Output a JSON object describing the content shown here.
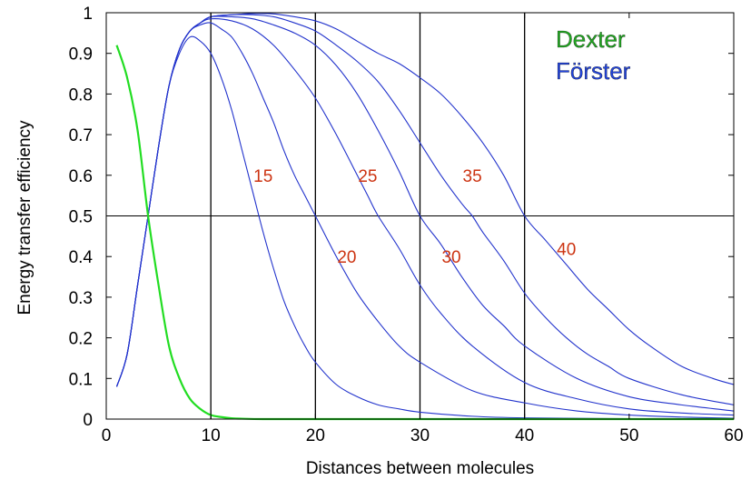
{
  "chart_data": {
    "type": "line",
    "title": "",
    "xlabel": "Distances between molecules",
    "ylabel": "Energy transfer efficiency",
    "xlim": [
      0,
      60
    ],
    "ylim": [
      0,
      1
    ],
    "xticks": [
      0,
      10,
      20,
      30,
      40,
      50,
      60
    ],
    "yticks": [
      0,
      0.1,
      0.2,
      0.3,
      0.4,
      0.5,
      0.6,
      0.7,
      0.8,
      0.9,
      1
    ],
    "ytick_labels": [
      "0",
      "0.1",
      "0.2",
      "0.3",
      "0.4",
      "0.5",
      "0.6",
      "0.7",
      "0.8",
      "0.9",
      "1"
    ],
    "reference_lines": {
      "y": [
        0.5
      ],
      "x": [
        10,
        20,
        30,
        40
      ]
    },
    "grid": false,
    "legend": {
      "position": "top-right",
      "entries": [
        {
          "label": "Dexter",
          "color": "#22aa22"
        },
        {
          "label": "Förster",
          "color": "#2244dd"
        }
      ]
    },
    "colors": {
      "dexter": "#22dd22",
      "forster": "#2233cc",
      "curve_labels": "#cc3311",
      "frame": "#000000"
    },
    "series": [
      {
        "group": "Dexter",
        "x": [
          1,
          2,
          3,
          4,
          5,
          6,
          7,
          8,
          9,
          10,
          11,
          12,
          13,
          15,
          20,
          30,
          40,
          50,
          60
        ],
        "y": [
          0.92,
          0.84,
          0.71,
          0.5,
          0.33,
          0.18,
          0.1,
          0.05,
          0.025,
          0.01,
          0.005,
          0.002,
          0.001,
          0,
          0,
          0,
          0,
          0,
          0
        ]
      },
      {
        "group": "Förster",
        "label": "15",
        "label_at": [
          15,
          0.6
        ],
        "x": [
          1,
          2,
          3,
          4,
          5,
          6,
          7,
          8,
          9,
          10,
          11,
          12,
          13,
          14,
          15,
          16,
          17,
          18,
          19,
          20,
          22,
          24,
          26,
          28,
          30,
          35,
          40,
          50,
          60
        ],
        "y": [
          0.08,
          0.16,
          0.33,
          0.5,
          0.67,
          0.82,
          0.9,
          0.94,
          0.93,
          0.9,
          0.84,
          0.76,
          0.66,
          0.56,
          0.46,
          0.37,
          0.29,
          0.23,
          0.18,
          0.14,
          0.085,
          0.055,
          0.035,
          0.025,
          0.017,
          0.007,
          0.003,
          0.001,
          0
        ]
      },
      {
        "group": "Förster",
        "label": "20",
        "label_at": [
          23,
          0.4
        ],
        "x": [
          1,
          2,
          3,
          4,
          5,
          6,
          7,
          8,
          9,
          10,
          11,
          12,
          13,
          14,
          15,
          16,
          17,
          18,
          19,
          20,
          22,
          24,
          26,
          28,
          30,
          35,
          40,
          45,
          50,
          55,
          60
        ],
        "y": [
          0.08,
          0.16,
          0.33,
          0.5,
          0.67,
          0.82,
          0.91,
          0.955,
          0.97,
          0.975,
          0.96,
          0.94,
          0.9,
          0.85,
          0.79,
          0.73,
          0.66,
          0.6,
          0.55,
          0.5,
          0.4,
          0.31,
          0.24,
          0.18,
          0.14,
          0.07,
          0.04,
          0.02,
          0.01,
          0.005,
          0.002
        ]
      },
      {
        "group": "Förster",
        "label": "25",
        "label_at": [
          25,
          0.6
        ],
        "x": [
          1,
          2,
          3,
          4,
          5,
          6,
          7,
          8,
          9,
          10,
          12,
          14,
          16,
          18,
          20,
          22,
          24,
          25,
          26,
          28,
          30,
          32,
          35,
          40,
          45,
          50,
          55,
          60
        ],
        "y": [
          0.08,
          0.16,
          0.33,
          0.5,
          0.67,
          0.82,
          0.91,
          0.955,
          0.975,
          0.985,
          0.98,
          0.96,
          0.92,
          0.86,
          0.79,
          0.7,
          0.6,
          0.55,
          0.5,
          0.42,
          0.33,
          0.26,
          0.18,
          0.09,
          0.05,
          0.025,
          0.015,
          0.01
        ]
      },
      {
        "group": "Förster",
        "label": "30",
        "label_at": [
          33,
          0.4
        ],
        "x": [
          1,
          2,
          3,
          4,
          5,
          6,
          7,
          8,
          9,
          10,
          12,
          14,
          16,
          18,
          20,
          22,
          24,
          26,
          28,
          30,
          32,
          34,
          36,
          38,
          40,
          45,
          50,
          55,
          60
        ],
        "y": [
          0.08,
          0.16,
          0.33,
          0.5,
          0.67,
          0.82,
          0.91,
          0.955,
          0.975,
          0.99,
          0.99,
          0.985,
          0.97,
          0.95,
          0.92,
          0.87,
          0.8,
          0.71,
          0.61,
          0.5,
          0.43,
          0.35,
          0.28,
          0.23,
          0.18,
          0.1,
          0.055,
          0.035,
          0.02
        ]
      },
      {
        "group": "Förster",
        "label": "35",
        "label_at": [
          35,
          0.6
        ],
        "x": [
          1,
          2,
          3,
          4,
          5,
          6,
          7,
          8,
          9,
          10,
          12,
          14,
          16,
          18,
          20,
          22,
          24,
          26,
          28,
          30,
          32,
          34,
          35,
          36,
          38,
          40,
          42,
          44,
          46,
          48,
          50,
          55,
          60
        ],
        "y": [
          0.08,
          0.16,
          0.33,
          0.5,
          0.67,
          0.82,
          0.91,
          0.955,
          0.975,
          0.99,
          0.995,
          0.995,
          0.99,
          0.975,
          0.955,
          0.92,
          0.88,
          0.83,
          0.76,
          0.68,
          0.6,
          0.53,
          0.5,
          0.46,
          0.39,
          0.31,
          0.25,
          0.2,
          0.16,
          0.13,
          0.1,
          0.06,
          0.035
        ]
      },
      {
        "group": "Förster",
        "label": "40",
        "label_at": [
          44,
          0.42
        ],
        "x": [
          1,
          2,
          3,
          4,
          5,
          6,
          7,
          8,
          9,
          10,
          12,
          14,
          16,
          18,
          20,
          22,
          24,
          26,
          28,
          30,
          32,
          34,
          36,
          38,
          40,
          42,
          44,
          46,
          48,
          50,
          52,
          55,
          58,
          60
        ],
        "y": [
          0.08,
          0.16,
          0.33,
          0.5,
          0.67,
          0.82,
          0.91,
          0.955,
          0.975,
          0.99,
          0.995,
          0.998,
          0.997,
          0.99,
          0.98,
          0.96,
          0.93,
          0.9,
          0.875,
          0.84,
          0.8,
          0.745,
          0.68,
          0.6,
          0.5,
          0.44,
          0.38,
          0.32,
          0.27,
          0.22,
          0.18,
          0.13,
          0.1,
          0.085
        ]
      }
    ]
  }
}
